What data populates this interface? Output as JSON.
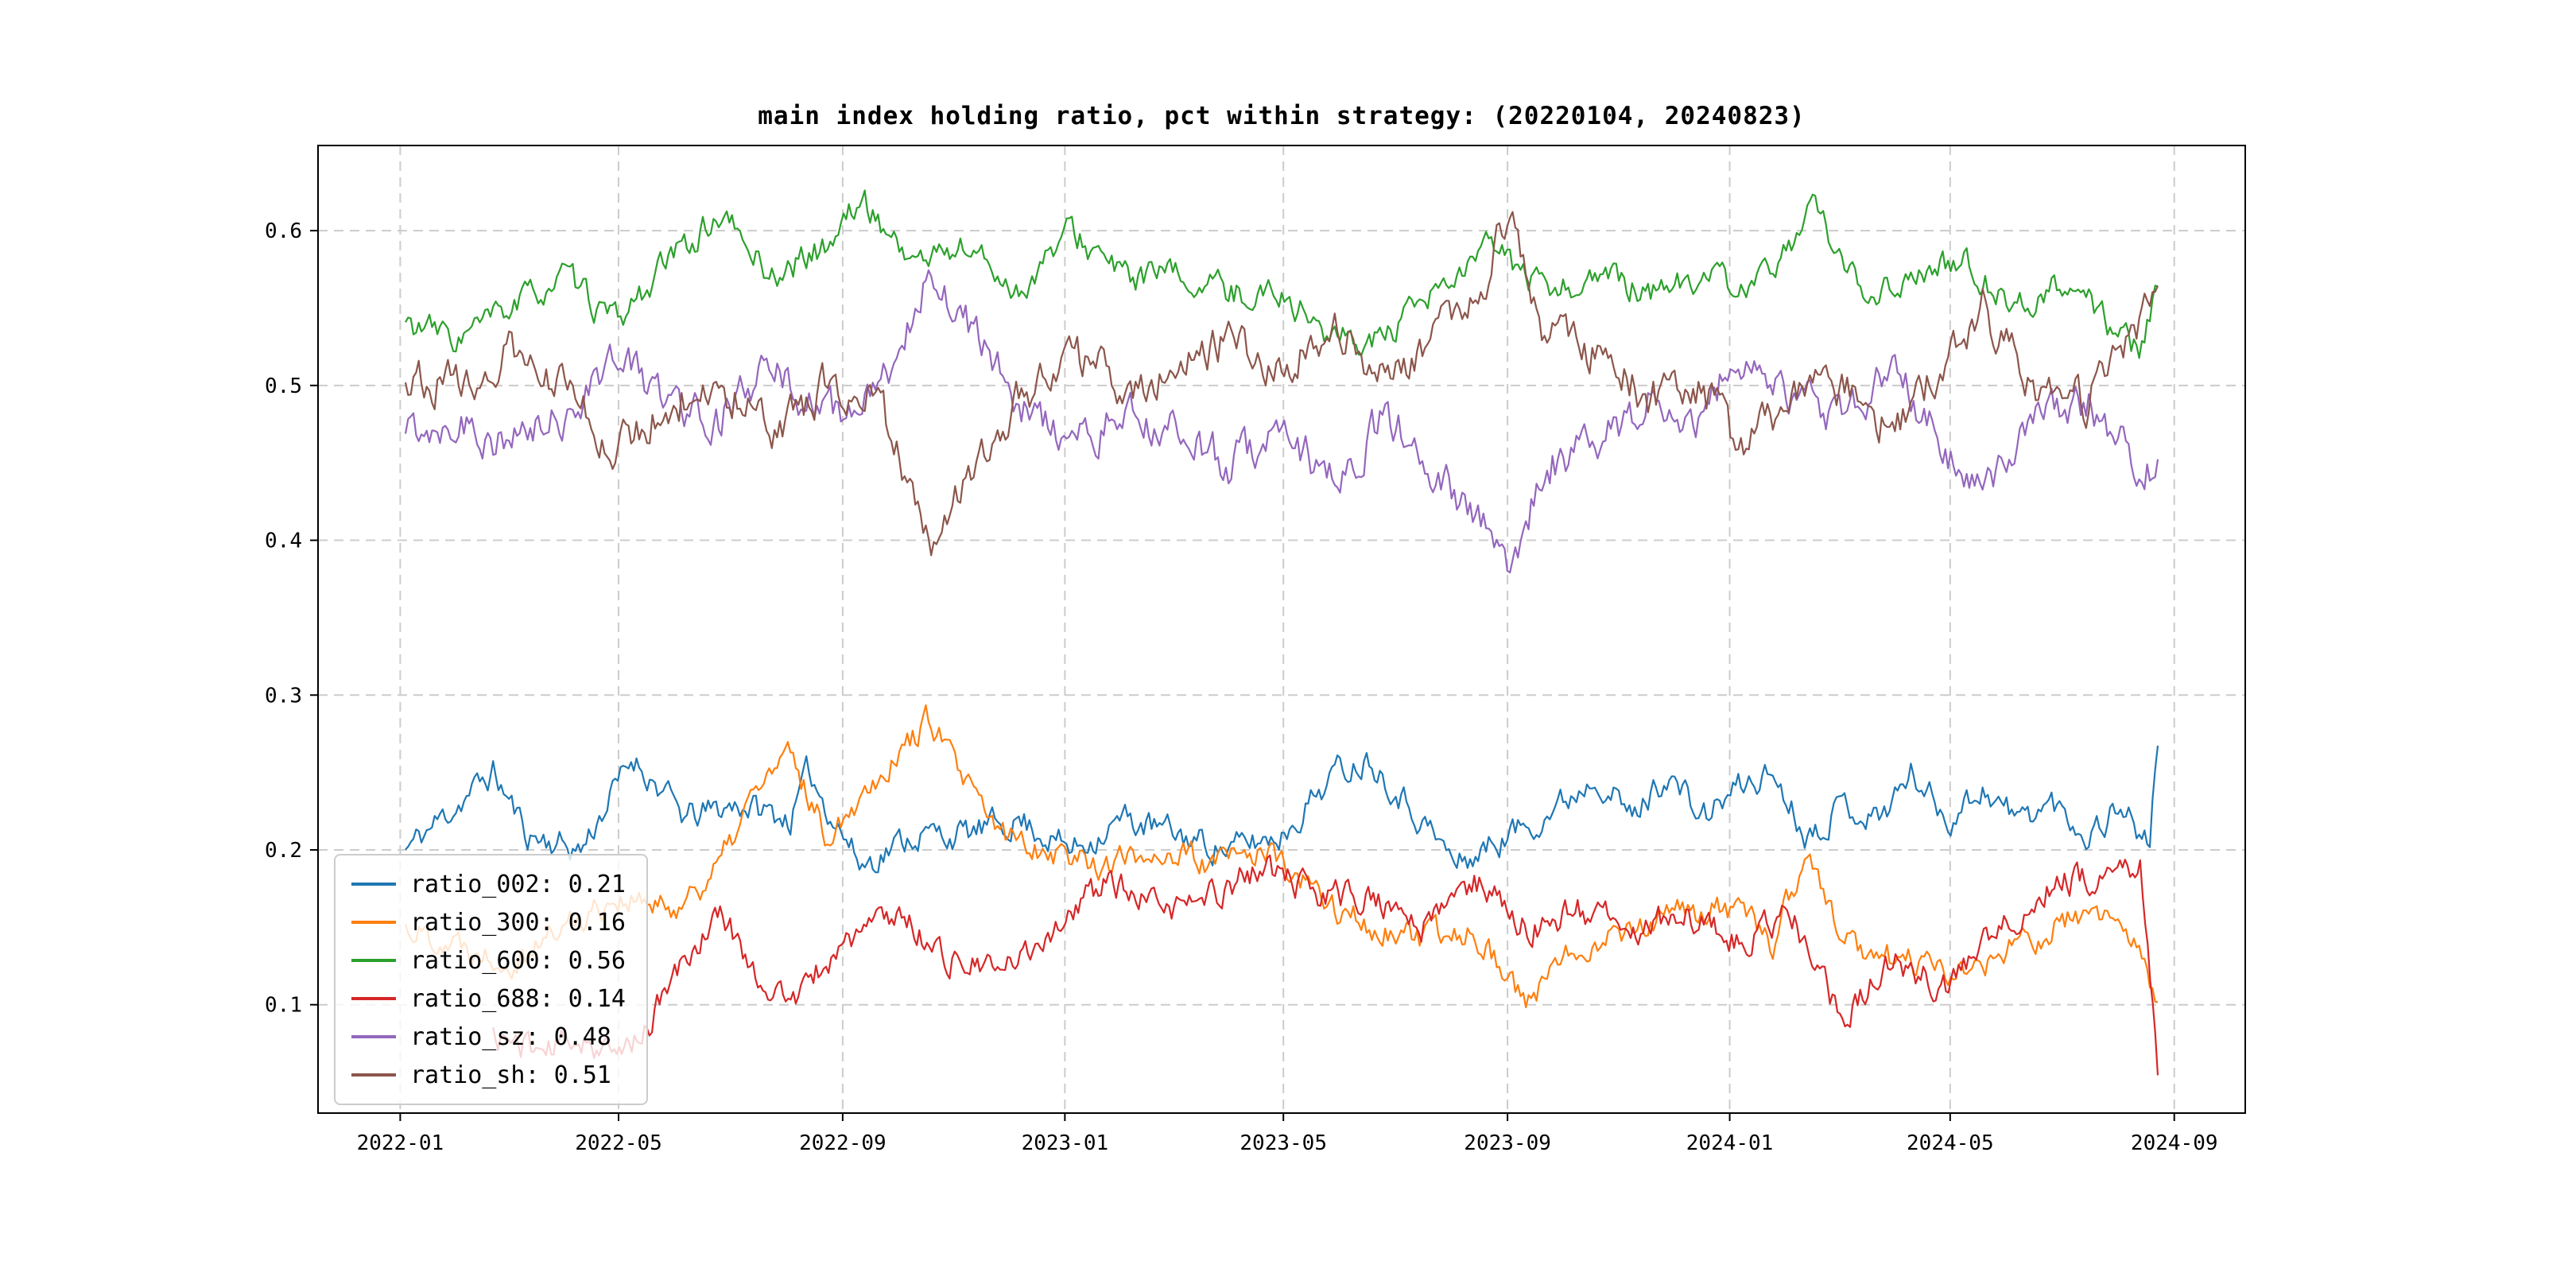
{
  "chart_data": {
    "type": "line",
    "title": "main index holding ratio, pct within strategy: (20220104, 20240823)",
    "xlabel": "",
    "ylabel": "",
    "x_start": "2022-01-04",
    "x_end": "2024-08-23",
    "ylim": [
      0.03,
      0.655
    ],
    "grid": "dashed",
    "grid_color": "#cccccc",
    "legend_position": "lower-left",
    "x_ticks": [
      {
        "label": "2022-01",
        "f": -0.003
      },
      {
        "label": "2022-05",
        "f": 0.1216
      },
      {
        "label": "2022-09",
        "f": 0.2495
      },
      {
        "label": "2023-01",
        "f": 0.3763
      },
      {
        "label": "2023-05",
        "f": 0.501
      },
      {
        "label": "2023-09",
        "f": 0.6289
      },
      {
        "label": "2024-01",
        "f": 0.7557
      },
      {
        "label": "2024-05",
        "f": 0.8815
      },
      {
        "label": "2024-09",
        "f": 1.0094
      }
    ],
    "y_ticks": [
      {
        "label": "0.1",
        "v": 0.1
      },
      {
        "label": "0.2",
        "v": 0.2
      },
      {
        "label": "0.3",
        "v": 0.3
      },
      {
        "label": "0.4",
        "v": 0.4
      },
      {
        "label": "0.5",
        "v": 0.5
      },
      {
        "label": "0.6",
        "v": 0.6
      }
    ],
    "series": [
      {
        "name": "ratio_002",
        "legend_label": "ratio_002: 0.21",
        "current_value": 0.21,
        "color": "#1f77b4",
        "noise": 0.013,
        "seed": 11,
        "anchors": [
          [
            0,
            0.2
          ],
          [
            0.03,
            0.23
          ],
          [
            0.05,
            0.25
          ],
          [
            0.07,
            0.21
          ],
          [
            0.1,
            0.2
          ],
          [
            0.12,
            0.24
          ],
          [
            0.13,
            0.26
          ],
          [
            0.16,
            0.22
          ],
          [
            0.19,
            0.23
          ],
          [
            0.22,
            0.22
          ],
          [
            0.23,
            0.25
          ],
          [
            0.26,
            0.19
          ],
          [
            0.29,
            0.21
          ],
          [
            0.32,
            0.21
          ],
          [
            0.35,
            0.22
          ],
          [
            0.38,
            0.2
          ],
          [
            0.41,
            0.22
          ],
          [
            0.44,
            0.21
          ],
          [
            0.47,
            0.2
          ],
          [
            0.5,
            0.21
          ],
          [
            0.53,
            0.25
          ],
          [
            0.55,
            0.26
          ],
          [
            0.58,
            0.22
          ],
          [
            0.6,
            0.19
          ],
          [
            0.63,
            0.21
          ],
          [
            0.66,
            0.23
          ],
          [
            0.68,
            0.25
          ],
          [
            0.7,
            0.22
          ],
          [
            0.72,
            0.25
          ],
          [
            0.74,
            0.22
          ],
          [
            0.76,
            0.24
          ],
          [
            0.78,
            0.25
          ],
          [
            0.8,
            0.21
          ],
          [
            0.82,
            0.23
          ],
          [
            0.84,
            0.22
          ],
          [
            0.86,
            0.25
          ],
          [
            0.88,
            0.22
          ],
          [
            0.9,
            0.24
          ],
          [
            0.92,
            0.22
          ],
          [
            0.94,
            0.23
          ],
          [
            0.96,
            0.21
          ],
          [
            0.98,
            0.23
          ],
          [
            0.995,
            0.2
          ],
          [
            1.0,
            0.27
          ]
        ]
      },
      {
        "name": "ratio_300",
        "legend_label": "ratio_300: 0.16",
        "current_value": 0.16,
        "color": "#ff7f0e",
        "noise": 0.013,
        "seed": 22,
        "anchors": [
          [
            0,
            0.15
          ],
          [
            0.03,
            0.14
          ],
          [
            0.06,
            0.13
          ],
          [
            0.09,
            0.15
          ],
          [
            0.12,
            0.17
          ],
          [
            0.15,
            0.16
          ],
          [
            0.18,
            0.19
          ],
          [
            0.2,
            0.24
          ],
          [
            0.22,
            0.26
          ],
          [
            0.24,
            0.21
          ],
          [
            0.27,
            0.25
          ],
          [
            0.3,
            0.285
          ],
          [
            0.32,
            0.24
          ],
          [
            0.34,
            0.21
          ],
          [
            0.37,
            0.2
          ],
          [
            0.4,
            0.19
          ],
          [
            0.43,
            0.2
          ],
          [
            0.46,
            0.19
          ],
          [
            0.49,
            0.2
          ],
          [
            0.52,
            0.17
          ],
          [
            0.55,
            0.15
          ],
          [
            0.58,
            0.14
          ],
          [
            0.61,
            0.15
          ],
          [
            0.64,
            0.1
          ],
          [
            0.67,
            0.14
          ],
          [
            0.7,
            0.15
          ],
          [
            0.73,
            0.16
          ],
          [
            0.76,
            0.16
          ],
          [
            0.78,
            0.14
          ],
          [
            0.8,
            0.2
          ],
          [
            0.82,
            0.14
          ],
          [
            0.85,
            0.13
          ],
          [
            0.88,
            0.12
          ],
          [
            0.91,
            0.13
          ],
          [
            0.94,
            0.15
          ],
          [
            0.97,
            0.16
          ],
          [
            0.99,
            0.13
          ],
          [
            1.0,
            0.095
          ]
        ]
      },
      {
        "name": "ratio_600",
        "legend_label": "ratio_600: 0.56",
        "current_value": 0.56,
        "color": "#2ca02c",
        "noise": 0.013,
        "seed": 33,
        "anchors": [
          [
            0,
            0.54
          ],
          [
            0.03,
            0.53
          ],
          [
            0.06,
            0.55
          ],
          [
            0.09,
            0.57
          ],
          [
            0.12,
            0.54
          ],
          [
            0.15,
            0.58
          ],
          [
            0.18,
            0.61
          ],
          [
            0.21,
            0.57
          ],
          [
            0.24,
            0.59
          ],
          [
            0.26,
            0.62
          ],
          [
            0.29,
            0.58
          ],
          [
            0.32,
            0.59
          ],
          [
            0.35,
            0.56
          ],
          [
            0.38,
            0.6
          ],
          [
            0.41,
            0.57
          ],
          [
            0.44,
            0.57
          ],
          [
            0.47,
            0.56
          ],
          [
            0.5,
            0.56
          ],
          [
            0.53,
            0.53
          ],
          [
            0.56,
            0.53
          ],
          [
            0.59,
            0.56
          ],
          [
            0.62,
            0.59
          ],
          [
            0.65,
            0.56
          ],
          [
            0.68,
            0.57
          ],
          [
            0.71,
            0.56
          ],
          [
            0.74,
            0.57
          ],
          [
            0.77,
            0.56
          ],
          [
            0.79,
            0.59
          ],
          [
            0.8,
            0.62
          ],
          [
            0.83,
            0.56
          ],
          [
            0.86,
            0.57
          ],
          [
            0.89,
            0.58
          ],
          [
            0.92,
            0.55
          ],
          [
            0.95,
            0.57
          ],
          [
            0.97,
            0.54
          ],
          [
            0.99,
            0.52
          ],
          [
            1.0,
            0.56
          ]
        ]
      },
      {
        "name": "ratio_688",
        "legend_label": "ratio_688: 0.14",
        "current_value": 0.14,
        "color": "#d62728",
        "noise": 0.013,
        "seed": 44,
        "anchors": [
          [
            0.05,
            0.08
          ],
          [
            0.08,
            0.07
          ],
          [
            0.1,
            0.08
          ],
          [
            0.12,
            0.065
          ],
          [
            0.14,
            0.09
          ],
          [
            0.16,
            0.13
          ],
          [
            0.18,
            0.16
          ],
          [
            0.2,
            0.12
          ],
          [
            0.22,
            0.1
          ],
          [
            0.25,
            0.14
          ],
          [
            0.28,
            0.16
          ],
          [
            0.31,
            0.13
          ],
          [
            0.34,
            0.12
          ],
          [
            0.37,
            0.15
          ],
          [
            0.4,
            0.18
          ],
          [
            0.43,
            0.16
          ],
          [
            0.46,
            0.17
          ],
          [
            0.49,
            0.19
          ],
          [
            0.52,
            0.17
          ],
          [
            0.55,
            0.17
          ],
          [
            0.58,
            0.15
          ],
          [
            0.61,
            0.18
          ],
          [
            0.64,
            0.15
          ],
          [
            0.67,
            0.16
          ],
          [
            0.7,
            0.15
          ],
          [
            0.73,
            0.16
          ],
          [
            0.76,
            0.14
          ],
          [
            0.79,
            0.16
          ],
          [
            0.82,
            0.09
          ],
          [
            0.85,
            0.13
          ],
          [
            0.88,
            0.11
          ],
          [
            0.91,
            0.15
          ],
          [
            0.94,
            0.18
          ],
          [
            0.97,
            0.18
          ],
          [
            0.99,
            0.19
          ],
          [
            1.0,
            0.06
          ]
        ]
      },
      {
        "name": "ratio_sz",
        "legend_label": "ratio_sz: 0.48",
        "current_value": 0.48,
        "color": "#9467bd",
        "noise": 0.018,
        "seed": 55,
        "anchors": [
          [
            0,
            0.47
          ],
          [
            0.03,
            0.48
          ],
          [
            0.06,
            0.46
          ],
          [
            0.09,
            0.48
          ],
          [
            0.12,
            0.52
          ],
          [
            0.15,
            0.49
          ],
          [
            0.18,
            0.48
          ],
          [
            0.21,
            0.51
          ],
          [
            0.24,
            0.48
          ],
          [
            0.27,
            0.49
          ],
          [
            0.29,
            0.55
          ],
          [
            0.3,
            0.58
          ],
          [
            0.32,
            0.54
          ],
          [
            0.35,
            0.49
          ],
          [
            0.38,
            0.46
          ],
          [
            0.41,
            0.48
          ],
          [
            0.44,
            0.47
          ],
          [
            0.47,
            0.45
          ],
          [
            0.5,
            0.47
          ],
          [
            0.53,
            0.44
          ],
          [
            0.56,
            0.48
          ],
          [
            0.59,
            0.44
          ],
          [
            0.62,
            0.4
          ],
          [
            0.63,
            0.38
          ],
          [
            0.65,
            0.45
          ],
          [
            0.68,
            0.46
          ],
          [
            0.71,
            0.49
          ],
          [
            0.74,
            0.48
          ],
          [
            0.76,
            0.52
          ],
          [
            0.79,
            0.49
          ],
          [
            0.82,
            0.48
          ],
          [
            0.85,
            0.51
          ],
          [
            0.88,
            0.46
          ],
          [
            0.9,
            0.43
          ],
          [
            0.93,
            0.48
          ],
          [
            0.96,
            0.49
          ],
          [
            0.98,
            0.46
          ],
          [
            1.0,
            0.445
          ]
        ]
      },
      {
        "name": "ratio_sh",
        "legend_label": "ratio_sh: 0.51",
        "current_value": 0.51,
        "color": "#8c564b",
        "noise": 0.018,
        "seed": 66,
        "anchors": [
          [
            0,
            0.51
          ],
          [
            0.03,
            0.5
          ],
          [
            0.06,
            0.52
          ],
          [
            0.09,
            0.5
          ],
          [
            0.12,
            0.46
          ],
          [
            0.15,
            0.49
          ],
          [
            0.18,
            0.5
          ],
          [
            0.21,
            0.47
          ],
          [
            0.24,
            0.5
          ],
          [
            0.27,
            0.49
          ],
          [
            0.29,
            0.43
          ],
          [
            0.3,
            0.405
          ],
          [
            0.32,
            0.44
          ],
          [
            0.35,
            0.49
          ],
          [
            0.38,
            0.52
          ],
          [
            0.41,
            0.5
          ],
          [
            0.44,
            0.51
          ],
          [
            0.47,
            0.53
          ],
          [
            0.5,
            0.51
          ],
          [
            0.53,
            0.54
          ],
          [
            0.56,
            0.5
          ],
          [
            0.59,
            0.54
          ],
          [
            0.62,
            0.58
          ],
          [
            0.63,
            0.62
          ],
          [
            0.65,
            0.53
          ],
          [
            0.68,
            0.52
          ],
          [
            0.71,
            0.49
          ],
          [
            0.74,
            0.5
          ],
          [
            0.76,
            0.46
          ],
          [
            0.79,
            0.49
          ],
          [
            0.82,
            0.5
          ],
          [
            0.85,
            0.47
          ],
          [
            0.88,
            0.52
          ],
          [
            0.9,
            0.55
          ],
          [
            0.93,
            0.5
          ],
          [
            0.96,
            0.49
          ],
          [
            0.98,
            0.52
          ],
          [
            1.0,
            0.57
          ]
        ]
      }
    ]
  }
}
